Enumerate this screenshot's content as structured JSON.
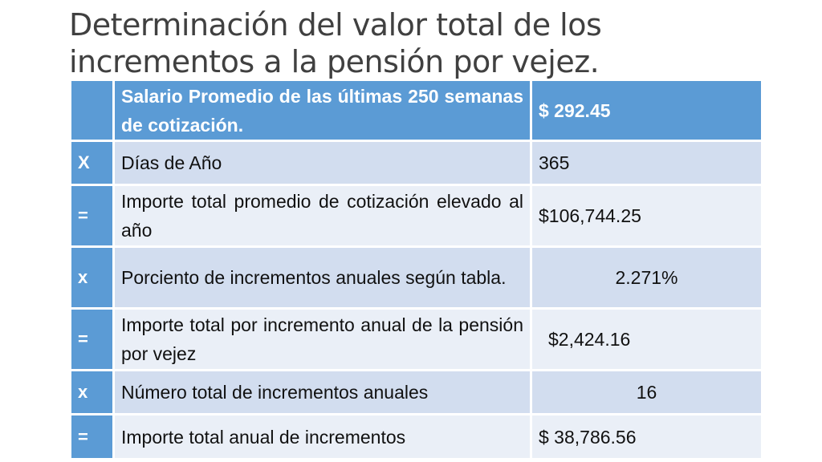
{
  "title": {
    "line1": "Determinación del valor total de los",
    "line2": "incrementos a la pensión por vejez."
  },
  "table": {
    "rows": [
      {
        "op": "",
        "desc": "Salario Promedio de las últimas 250 semanas de cotización.",
        "value": " $ 292.45"
      },
      {
        "op": "X",
        "desc": "Días de Año",
        "value": "365"
      },
      {
        "op": "=",
        "desc": "Importe total promedio de cotización elevado al año",
        "value": "$106,744.25"
      },
      {
        "op": "x",
        "desc": "Porciento de incrementos anuales según tabla.",
        "value": "2.271%"
      },
      {
        "op": "=",
        "desc": "Importe total por incremento anual de la pensión por vejez",
        "value": "$2,424.16"
      },
      {
        "op": "x",
        "desc": "Número total de incrementos anuales",
        "value": "16"
      },
      {
        "op": "=",
        "desc": "Importe total anual de incrementos",
        "value": "$ 38,786.56"
      }
    ]
  },
  "colors": {
    "header_blue": "#5b9bd5",
    "row_dark": "#d2ddef",
    "row_light": "#eaeff7",
    "title_gray": "#404040"
  }
}
